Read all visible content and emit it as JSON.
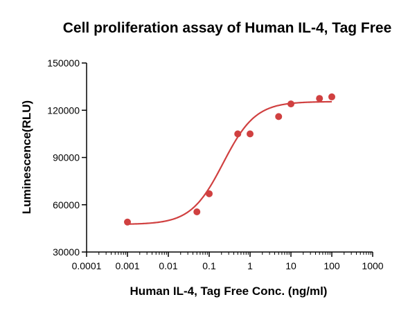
{
  "chart_data": {
    "type": "scatter",
    "title": "Cell proliferation assay of Human IL-4, Tag Free",
    "xlabel": "Human IL-4, Tag Free Conc. (ng/ml)",
    "ylabel": "Luminescence(RLU)",
    "x_scale": "log",
    "xlim": [
      0.0001,
      1000
    ],
    "ylim": [
      30000,
      150000
    ],
    "x_ticks": [
      {
        "value": 0.0001,
        "label": "0.0001"
      },
      {
        "value": 0.001,
        "label": "0.001"
      },
      {
        "value": 0.01,
        "label": "0.01"
      },
      {
        "value": 0.1,
        "label": "0.1"
      },
      {
        "value": 1,
        "label": "1"
      },
      {
        "value": 10,
        "label": "10"
      },
      {
        "value": 100,
        "label": "100"
      },
      {
        "value": 1000,
        "label": "1000"
      }
    ],
    "y_ticks": [
      {
        "value": 30000,
        "label": "30000"
      },
      {
        "value": 60000,
        "label": "60000"
      },
      {
        "value": 90000,
        "label": "90000"
      },
      {
        "value": 120000,
        "label": "120000"
      },
      {
        "value": 150000,
        "label": "150000"
      }
    ],
    "series": [
      {
        "color": "#d04040",
        "points": [
          {
            "x": 0.001,
            "y": 49000
          },
          {
            "x": 0.05,
            "y": 55500
          },
          {
            "x": 0.1,
            "y": 67000
          },
          {
            "x": 0.5,
            "y": 105000
          },
          {
            "x": 1,
            "y": 105000
          },
          {
            "x": 5,
            "y": 116000
          },
          {
            "x": 10,
            "y": 124000
          },
          {
            "x": 50,
            "y": 127500
          },
          {
            "x": 100,
            "y": 128500
          }
        ],
        "fit_curve": {
          "model": "4PL",
          "bottom": 47500,
          "top": 125500,
          "ec50": 0.22,
          "hill": 1.1,
          "x_range": [
            0.001,
            100
          ]
        }
      }
    ],
    "grid": false,
    "legend": "none"
  }
}
